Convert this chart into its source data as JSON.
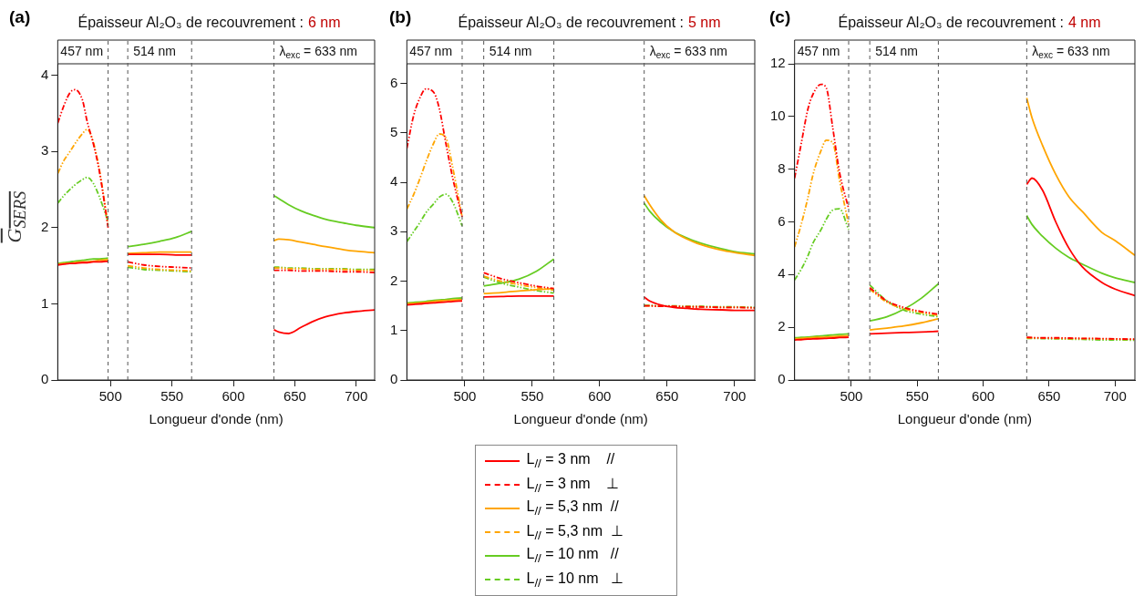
{
  "chart_data": [
    {
      "type": "line",
      "title": "Épaisseur Al₂O₃ de recouvrement :",
      "subtitle": "6 nm",
      "xlabel": "Longueur d'onde (nm)",
      "ylabel": "G$_{SERS}$",
      "annotations": [
        "(a)",
        "457 nm"
      ],
      "x": [
        457,
        462,
        467,
        471,
        477,
        481,
        486,
        491,
        498,
        506,
        514,
        527,
        540,
        553,
        566,
        600,
        633,
        637,
        645,
        655,
        665,
        675,
        690,
        700,
        715
      ],
      "xlim": [
        457,
        715
      ],
      "xticks": [
        500,
        550,
        600,
        650,
        700
      ],
      "ylim": [
        0,
        4.15
      ],
      "yticks": [
        0,
        1,
        2,
        3,
        4
      ],
      "grid": false,
      "marker": "none",
      "ref_lines": [
        {
          "axis": "x",
          "value": 498,
          "label": null,
          "color": "#555555",
          "line_style": "dashed"
        },
        {
          "axis": "x",
          "value": 514,
          "label": "514 nm",
          "color": "#555555",
          "line_style": "dashed"
        },
        {
          "axis": "x",
          "value": 566,
          "label": null,
          "color": "#555555",
          "line_style": "dashed"
        },
        {
          "axis": "x",
          "value": 633,
          "label": "λ$_{exc}$ = 633 nm",
          "color": "#555555",
          "line_style": "dashed"
        }
      ],
      "series": [
        {
          "color": "#ff0000",
          "line_style": "solid",
          "values": [
            1.51,
            1.52,
            1.53,
            1.53,
            1.54,
            1.54,
            1.55,
            1.55,
            1.56,
            null,
            1.65,
            1.65,
            1.65,
            1.64,
            1.64,
            null,
            0.66,
            0.63,
            0.61,
            0.69,
            0.77,
            0.83,
            0.88,
            0.9,
            0.92
          ]
        },
        {
          "color": "#ff0000",
          "line_style": "dashed",
          "values": [
            3.37,
            3.6,
            3.77,
            3.81,
            3.68,
            3.39,
            3.1,
            2.73,
            2.0,
            null,
            1.55,
            1.51,
            1.49,
            1.48,
            1.47,
            null,
            1.44,
            1.44,
            1.44,
            1.43,
            1.43,
            1.43,
            1.42,
            1.42,
            1.41
          ]
        },
        {
          "color": "#ffa500",
          "line_style": "solid",
          "values": [
            1.52,
            1.53,
            1.53,
            1.54,
            1.55,
            1.55,
            1.56,
            1.57,
            1.58,
            null,
            1.66,
            1.67,
            1.68,
            1.68,
            1.68,
            null,
            1.83,
            1.85,
            1.84,
            1.81,
            1.78,
            1.75,
            1.71,
            1.69,
            1.67
          ]
        },
        {
          "color": "#ffa500",
          "line_style": "dashed",
          "values": [
            2.71,
            2.88,
            3.0,
            3.1,
            3.23,
            3.29,
            3.12,
            2.75,
            2.03,
            null,
            1.5,
            1.47,
            1.45,
            1.44,
            1.43,
            null,
            1.47,
            1.47,
            1.46,
            1.46,
            1.45,
            1.45,
            1.45,
            1.44,
            1.44
          ]
        },
        {
          "color": "#66cc22",
          "line_style": "solid",
          "values": [
            1.53,
            1.54,
            1.55,
            1.56,
            1.57,
            1.58,
            1.59,
            1.59,
            1.6,
            null,
            1.75,
            1.78,
            1.82,
            1.87,
            1.95,
            null,
            2.42,
            2.38,
            2.3,
            2.22,
            2.16,
            2.11,
            2.06,
            2.03,
            2.0
          ]
        },
        {
          "color": "#66cc22",
          "line_style": "dashed",
          "values": [
            2.32,
            2.42,
            2.5,
            2.56,
            2.63,
            2.66,
            2.58,
            2.4,
            2.08,
            null,
            1.48,
            1.45,
            1.44,
            1.43,
            1.42,
            null,
            1.48,
            1.48,
            1.47,
            1.47,
            1.46,
            1.46,
            1.46,
            1.45,
            1.45
          ]
        }
      ]
    },
    {
      "type": "line",
      "title": "Épaisseur Al₂O₃ de recouvrement :",
      "subtitle": "5 nm",
      "xlabel": "Longueur d'onde (nm)",
      "annotations": [
        "(b)",
        "457 nm"
      ],
      "x": [
        457,
        462,
        467,
        471,
        477,
        481,
        486,
        491,
        498,
        506,
        514,
        527,
        540,
        553,
        566,
        600,
        633,
        637,
        645,
        655,
        665,
        675,
        690,
        700,
        715
      ],
      "xlim": [
        457,
        715
      ],
      "xticks": [
        500,
        550,
        600,
        650,
        700
      ],
      "ylim": [
        0,
        6.4
      ],
      "yticks": [
        0,
        1,
        2,
        3,
        4,
        5,
        6
      ],
      "grid": false,
      "marker": "none",
      "legend": "bottom",
      "ref_lines": [
        {
          "axis": "x",
          "value": 498,
          "label": null,
          "color": "#555555",
          "line_style": "dashed"
        },
        {
          "axis": "x",
          "value": 514,
          "label": "514 nm",
          "color": "#555555",
          "line_style": "dashed"
        },
        {
          "axis": "x",
          "value": 566,
          "label": null,
          "color": "#555555",
          "line_style": "dashed"
        },
        {
          "axis": "x",
          "value": 633,
          "label": "λ$_{exc}$ = 633 nm",
          "color": "#555555",
          "line_style": "dashed"
        }
      ],
      "series": [
        {
          "name": "L$_{//}$ = 3 nm    //",
          "color": "#ff0000",
          "line_style": "solid",
          "values": [
            1.52,
            1.53,
            1.54,
            1.55,
            1.56,
            1.57,
            1.58,
            1.59,
            1.6,
            null,
            1.68,
            1.69,
            1.7,
            1.7,
            1.7,
            null,
            1.68,
            1.6,
            1.52,
            1.47,
            1.45,
            1.43,
            1.42,
            1.41,
            1.41
          ]
        },
        {
          "name": "L$_{//}$ = 3 nm    ⊥",
          "color": "#ff0000",
          "line_style": "dashed",
          "values": [
            4.69,
            5.35,
            5.73,
            5.89,
            5.82,
            5.5,
            4.78,
            4.09,
            3.3,
            null,
            2.17,
            2.05,
            1.97,
            1.9,
            1.85,
            null,
            1.5,
            1.5,
            1.49,
            1.49,
            1.48,
            1.48,
            1.47,
            1.47,
            1.46
          ]
        },
        {
          "name": "L$_{//}$ = 5,3 nm  //",
          "color": "#ffa500",
          "line_style": "solid",
          "values": [
            1.54,
            1.55,
            1.56,
            1.57,
            1.59,
            1.6,
            1.61,
            1.62,
            1.63,
            null,
            1.75,
            1.77,
            1.8,
            1.83,
            1.85,
            null,
            3.73,
            3.55,
            3.25,
            3.0,
            2.85,
            2.74,
            2.63,
            2.58,
            2.52
          ]
        },
        {
          "name": "L$_{//}$ = 5,3 nm  ⊥",
          "color": "#ffa500",
          "line_style": "dashed",
          "values": [
            3.46,
            3.75,
            4.1,
            4.4,
            4.8,
            4.98,
            4.9,
            4.3,
            3.3,
            null,
            2.1,
            2.0,
            1.93,
            1.87,
            1.82,
            null,
            1.5,
            1.5,
            1.49,
            1.49,
            1.48,
            1.48,
            1.47,
            1.47,
            1.46
          ]
        },
        {
          "name": "L$_{//}$ = 10 nm   //",
          "color": "#66cc22",
          "line_style": "solid",
          "values": [
            1.56,
            1.57,
            1.58,
            1.59,
            1.61,
            1.62,
            1.63,
            1.65,
            1.66,
            null,
            1.9,
            1.96,
            2.04,
            2.2,
            2.45,
            null,
            3.58,
            3.42,
            3.2,
            3.0,
            2.87,
            2.77,
            2.66,
            2.6,
            2.55
          ]
        },
        {
          "name": "L$_{//}$ = 10 nm   ⊥",
          "color": "#66cc22",
          "line_style": "dashed",
          "values": [
            2.8,
            3.0,
            3.2,
            3.38,
            3.57,
            3.7,
            3.76,
            3.6,
            3.12,
            null,
            2.08,
            1.96,
            1.88,
            1.81,
            1.76,
            null,
            1.51,
            1.51,
            1.5,
            1.5,
            1.49,
            1.49,
            1.48,
            1.48,
            1.47
          ]
        }
      ]
    },
    {
      "type": "line",
      "title": "Épaisseur Al₂O₃ de recouvrement :",
      "subtitle": "4 nm",
      "xlabel": "Longueur d'onde (nm)",
      "annotations": [
        "(c)",
        "457 nm"
      ],
      "x": [
        457,
        462,
        467,
        471,
        477,
        481,
        486,
        491,
        498,
        506,
        514,
        527,
        540,
        553,
        566,
        600,
        633,
        637,
        645,
        655,
        665,
        675,
        690,
        700,
        715
      ],
      "xlim": [
        457,
        715
      ],
      "xticks": [
        500,
        550,
        600,
        650,
        700
      ],
      "ylim": [
        0,
        12
      ],
      "yticks": [
        0,
        2,
        4,
        6,
        8,
        10,
        12
      ],
      "grid": false,
      "marker": "none",
      "ref_lines": [
        {
          "axis": "x",
          "value": 498,
          "label": null,
          "color": "#555555",
          "line_style": "dashed"
        },
        {
          "axis": "x",
          "value": 514,
          "label": "514 nm",
          "color": "#555555",
          "line_style": "dashed"
        },
        {
          "axis": "x",
          "value": 566,
          "label": null,
          "color": "#555555",
          "line_style": "dashed"
        },
        {
          "axis": "x",
          "value": 633,
          "label": "λ$_{exc}$ = 633 nm",
          "color": "#555555",
          "line_style": "dashed"
        }
      ],
      "series": [
        {
          "color": "#ff0000",
          "line_style": "solid",
          "values": [
            1.52,
            1.53,
            1.55,
            1.56,
            1.57,
            1.58,
            1.59,
            1.61,
            1.62,
            null,
            1.75,
            1.78,
            1.8,
            1.82,
            1.85,
            null,
            7.42,
            7.66,
            7.2,
            6.0,
            5.0,
            4.3,
            3.7,
            3.45,
            3.2
          ]
        },
        {
          "color": "#ff0000",
          "line_style": "dashed",
          "values": [
            7.66,
            8.96,
            10.26,
            10.85,
            11.22,
            11.09,
            9.55,
            7.9,
            6.5,
            null,
            3.5,
            3.0,
            2.75,
            2.6,
            2.5,
            null,
            1.62,
            1.61,
            1.6,
            1.6,
            1.59,
            1.58,
            1.57,
            1.56,
            1.55
          ]
        },
        {
          "color": "#ffa500",
          "line_style": "solid",
          "values": [
            1.56,
            1.58,
            1.59,
            1.61,
            1.62,
            1.63,
            1.65,
            1.66,
            1.68,
            null,
            1.9,
            1.97,
            2.05,
            2.17,
            2.32,
            null,
            10.7,
            9.95,
            8.9,
            7.8,
            6.95,
            6.4,
            5.6,
            5.29,
            4.73
          ]
        },
        {
          "color": "#ffa500",
          "line_style": "dashed",
          "values": [
            5.05,
            5.9,
            6.9,
            7.8,
            8.7,
            9.1,
            9.0,
            7.6,
            5.9,
            null,
            3.45,
            2.95,
            2.7,
            2.56,
            2.45,
            null,
            1.6,
            1.6,
            1.59,
            1.58,
            1.57,
            1.57,
            1.56,
            1.55,
            1.54
          ]
        },
        {
          "color": "#66cc22",
          "line_style": "solid",
          "values": [
            1.6,
            1.62,
            1.63,
            1.65,
            1.67,
            1.69,
            1.71,
            1.73,
            1.75,
            null,
            2.24,
            2.4,
            2.69,
            3.1,
            3.65,
            null,
            6.24,
            5.9,
            5.45,
            5.0,
            4.65,
            4.4,
            4.05,
            3.88,
            3.7
          ]
        },
        {
          "color": "#66cc22",
          "line_style": "dashed",
          "values": [
            3.79,
            4.2,
            4.7,
            5.2,
            5.7,
            6.1,
            6.45,
            6.5,
            5.7,
            null,
            3.6,
            3.0,
            2.65,
            2.5,
            2.4,
            null,
            1.58,
            1.58,
            1.57,
            1.56,
            1.55,
            1.54,
            1.52,
            1.52,
            1.51
          ]
        }
      ]
    }
  ]
}
